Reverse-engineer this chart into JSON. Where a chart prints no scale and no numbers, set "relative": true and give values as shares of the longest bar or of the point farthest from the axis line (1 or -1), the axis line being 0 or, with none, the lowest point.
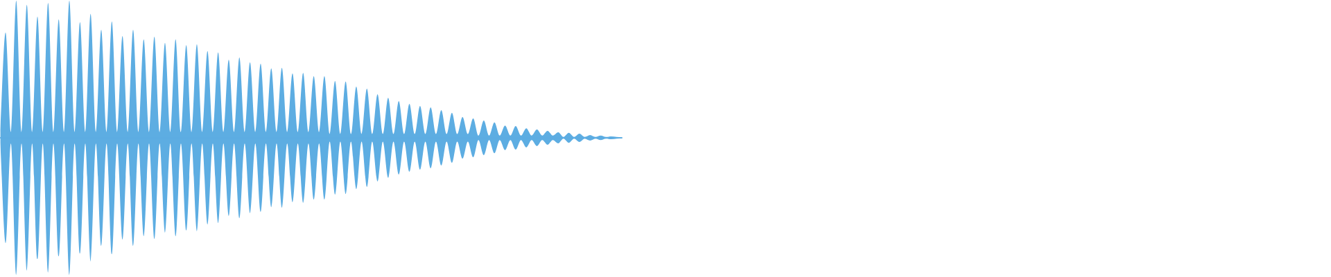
{
  "chart_data": {
    "type": "area",
    "relative": true,
    "categories": [
      null,
      null,
      null,
      null,
      null,
      null,
      null,
      null,
      null,
      null,
      null,
      null,
      null,
      null,
      null,
      null,
      null,
      null,
      null,
      null,
      null,
      null,
      null,
      null,
      null,
      null,
      null,
      null,
      null,
      null,
      null,
      null,
      null,
      null,
      null,
      null,
      null,
      null,
      null,
      null,
      null,
      null,
      null,
      null,
      null,
      null,
      null,
      null,
      null,
      null,
      null,
      null,
      null,
      null,
      null,
      null,
      null,
      null,
      null,
      null,
      null,
      null,
      null,
      null,
      null,
      null,
      null,
      null,
      null,
      null,
      null,
      null,
      null,
      null,
      null,
      null,
      null,
      null,
      null,
      null,
      null,
      null,
      null,
      null,
      null,
      null,
      null,
      null,
      null,
      null,
      null,
      null,
      null,
      null,
      null,
      null,
      null,
      null,
      null,
      null,
      null,
      null,
      null,
      null,
      null,
      null,
      null,
      null,
      null,
      null,
      null,
      null,
      null,
      null,
      null,
      null,
      null,
      null
    ],
    "series": [
      {
        "color": "#5dade2",
        "values": [
          0.036,
          0.768,
          0.042,
          1.0,
          0.042,
          0.97,
          0.042,
          0.884,
          0.042,
          0.984,
          0.042,
          0.864,
          0.042,
          1.0,
          0.042,
          0.844,
          0.042,
          0.904,
          0.042,
          0.788,
          0.042,
          0.848,
          0.042,
          0.742,
          0.042,
          0.788,
          0.042,
          0.718,
          0.042,
          0.738,
          0.042,
          0.692,
          0.042,
          0.718,
          0.042,
          0.676,
          0.042,
          0.682,
          0.042,
          0.632,
          0.042,
          0.622,
          0.042,
          0.57,
          0.042,
          0.586,
          0.042,
          0.55,
          0.042,
          0.54,
          0.042,
          0.506,
          0.042,
          0.51,
          0.042,
          0.47,
          0.042,
          0.474,
          0.042,
          0.45,
          0.042,
          0.45,
          0.028,
          0.414,
          0.028,
          0.41,
          0.028,
          0.374,
          0.028,
          0.358,
          0.028,
          0.318,
          0.028,
          0.292,
          0.028,
          0.268,
          0.028,
          0.248,
          0.028,
          0.232,
          0.028,
          0.222,
          0.028,
          0.202,
          0.028,
          0.182,
          0.028,
          0.152,
          0.028,
          0.142,
          0.016,
          0.126,
          0.016,
          0.112,
          0.016,
          0.09,
          0.016,
          0.086,
          0.016,
          0.07,
          0.016,
          0.06,
          0.016,
          0.05,
          0.016,
          0.04,
          0.006,
          0.036,
          0.006,
          0.03,
          0.006,
          0.02,
          0.006,
          0.016,
          0.006,
          0.01,
          0.006,
          0.004
        ]
      },
      {
        "color": "#5dade2",
        "values": [
          -0.036,
          -0.768,
          -0.042,
          -1.0,
          -0.042,
          -0.97,
          -0.042,
          -0.884,
          -0.042,
          -0.984,
          -0.042,
          -0.864,
          -0.042,
          -1.0,
          -0.042,
          -0.844,
          -0.042,
          -0.904,
          -0.042,
          -0.788,
          -0.042,
          -0.848,
          -0.042,
          -0.742,
          -0.042,
          -0.788,
          -0.042,
          -0.718,
          -0.042,
          -0.738,
          -0.042,
          -0.692,
          -0.042,
          -0.718,
          -0.042,
          -0.676,
          -0.042,
          -0.682,
          -0.042,
          -0.632,
          -0.042,
          -0.622,
          -0.042,
          -0.57,
          -0.042,
          -0.586,
          -0.042,
          -0.55,
          -0.042,
          -0.54,
          -0.042,
          -0.506,
          -0.042,
          -0.51,
          -0.042,
          -0.47,
          -0.042,
          -0.474,
          -0.042,
          -0.45,
          -0.042,
          -0.45,
          -0.028,
          -0.414,
          -0.028,
          -0.41,
          -0.028,
          -0.374,
          -0.028,
          -0.358,
          -0.028,
          -0.318,
          -0.028,
          -0.292,
          -0.028,
          -0.268,
          -0.028,
          -0.248,
          -0.028,
          -0.232,
          -0.028,
          -0.222,
          -0.028,
          -0.202,
          -0.028,
          -0.182,
          -0.028,
          -0.152,
          -0.028,
          -0.142,
          -0.016,
          -0.126,
          -0.016,
          -0.112,
          -0.016,
          -0.09,
          -0.016,
          -0.086,
          -0.016,
          -0.07,
          -0.016,
          -0.06,
          -0.016,
          -0.05,
          -0.016,
          -0.04,
          -0.006,
          -0.036,
          -0.006,
          -0.03,
          -0.006,
          -0.02,
          -0.006,
          -0.016,
          -0.006,
          -0.01,
          -0.006,
          -0.004
        ]
      }
    ],
    "ref_lines": [
      {
        "axis": "y",
        "value": 0,
        "color": "#5dade2"
      }
    ]
  }
}
